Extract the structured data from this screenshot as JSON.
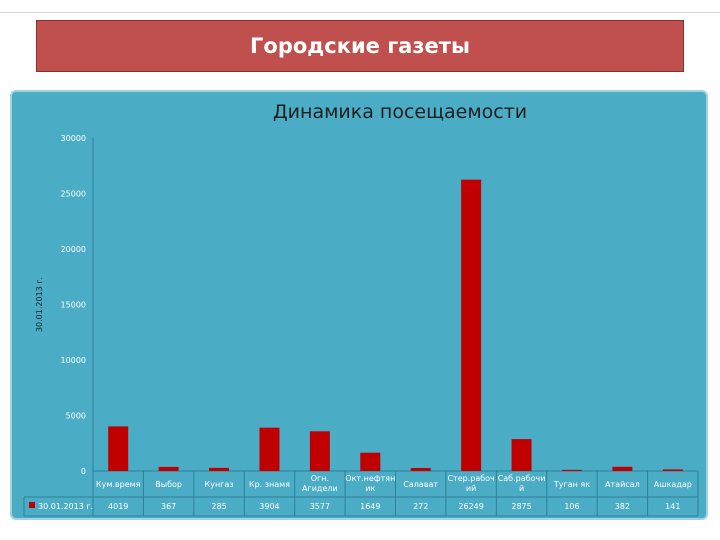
{
  "slide": {
    "title": "Городские газеты"
  },
  "colors": {
    "title_bg": "#c0504d",
    "panel_bg": "#4bacc6",
    "bar": "#c00000"
  },
  "chart_data": {
    "type": "bar",
    "title": "Динамика посещаемости",
    "ylabel": "30.01.2013 г.",
    "ylim": [
      0,
      30000
    ],
    "yticks": [
      0,
      5000,
      10000,
      15000,
      20000,
      25000,
      30000
    ],
    "categories": [
      [
        "Кум.время"
      ],
      [
        "Выбор"
      ],
      [
        "Кунгаз"
      ],
      [
        "Кр. знамя"
      ],
      [
        "Огн.",
        "Агидели"
      ],
      [
        "Окт.нефтян",
        "ик"
      ],
      [
        "Салават"
      ],
      [
        "Стер.рабоч",
        "ий"
      ],
      [
        "Саб.рабочи",
        "й"
      ],
      [
        "Туган як"
      ],
      [
        "Атайсал"
      ],
      [
        "Ашкадар"
      ]
    ],
    "series": [
      {
        "name": "30.01.2013 г.",
        "values": [
          4019,
          367,
          285,
          3904,
          3577,
          1649,
          272,
          26249,
          2875,
          106,
          382,
          141
        ],
        "labels": [
          "4019",
          "367",
          "285",
          "3904",
          "3577",
          "1649",
          "272",
          "26249",
          "2875",
          "106",
          "382",
          "141"
        ]
      }
    ],
    "legend": "data table",
    "grid": false
  }
}
